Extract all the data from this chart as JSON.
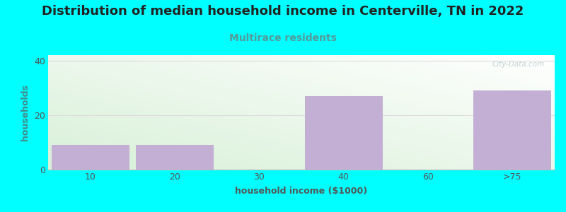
{
  "title": "Distribution of median household income in Centerville, TN in 2022",
  "subtitle": "Multirace residents",
  "xlabel": "household income ($1000)",
  "ylabel": "households",
  "background_color": "#00FFFF",
  "bar_color": "#c4afd4",
  "categories": [
    "10",
    "20",
    "30",
    "40",
    "60",
    ">75"
  ],
  "values": [
    9,
    9,
    0,
    27,
    0,
    29
  ],
  "ylim": [
    0,
    42
  ],
  "yticks": [
    0,
    20,
    40
  ],
  "watermark": "City-Data.com",
  "title_fontsize": 13,
  "subtitle_fontsize": 10,
  "subtitle_color": "#559999",
  "xlabel_fontsize": 9,
  "ylabel_fontsize": 9,
  "tick_fontsize": 9,
  "title_color": "#222222",
  "grid_color": "#dddddd",
  "ylabel_color": "#448888",
  "xlabel_color": "#555555",
  "tick_color": "#555555",
  "gradient_color_bottom_left": "#d8f0d8",
  "gradient_color_top_right": "#ffffff"
}
